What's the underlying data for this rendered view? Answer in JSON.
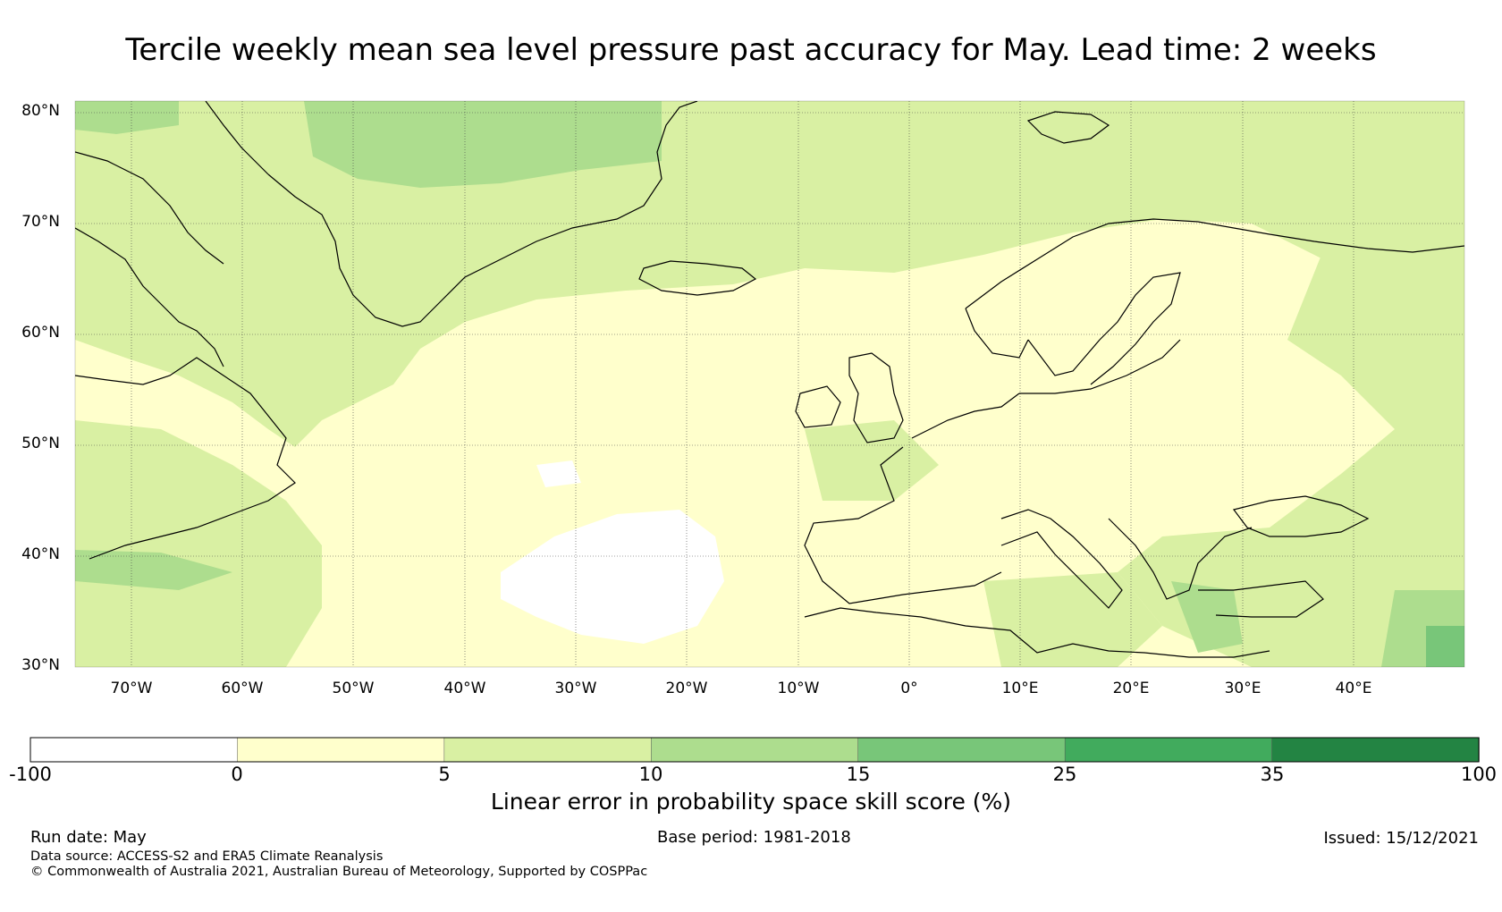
{
  "title": "Tercile weekly mean sea level pressure past accuracy for May. Lead time: 2 weeks",
  "map": {
    "lat_labels": [
      "80°N",
      "70°N",
      "60°N",
      "50°N",
      "40°N",
      "30°N"
    ],
    "lon_labels": [
      "70°W",
      "60°W",
      "50°W",
      "40°W",
      "30°W",
      "20°W",
      "10°W",
      "0°",
      "10°E",
      "20°E",
      "30°E",
      "40°E"
    ],
    "lat_range": [
      30,
      81
    ],
    "lon_range": [
      -75,
      50
    ]
  },
  "colorbar": {
    "ticks": [
      "-100",
      "0",
      "5",
      "10",
      "15",
      "25",
      "35",
      "100"
    ],
    "colors": [
      "#ffffff",
      "#ffffcc",
      "#d9f0a3",
      "#addd8e",
      "#78c679",
      "#41ab5d",
      "#238443"
    ],
    "label": "Linear error in probability space skill score (%)"
  },
  "footer": {
    "run_date": "Run date: May",
    "base_period": "Base period: 1981-2018",
    "issued": "Issued: 15/12/2021",
    "data_source": "Data source: ACCESS-S2 and ERA5 Climate Reanalysis",
    "copyright": "© Commonwealth of Australia 2021, Australian Bureau of Meteorology, Supported by COSPPac"
  }
}
